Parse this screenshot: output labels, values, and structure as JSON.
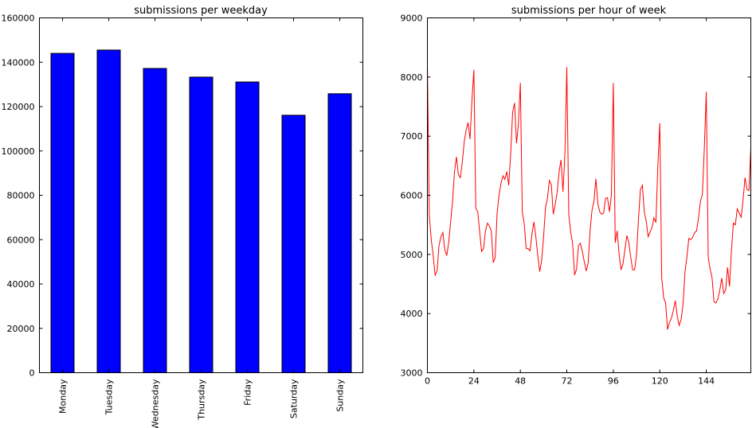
{
  "chart_data": [
    {
      "type": "bar",
      "title": "submissions per weekday",
      "categories": [
        "Monday",
        "Tuesday",
        "Wednesday",
        "Thursday",
        "Friday",
        "Saturday",
        "Sunday"
      ],
      "values": [
        144000,
        145500,
        137200,
        133300,
        131100,
        116100,
        125800
      ],
      "ylim": [
        0,
        160000
      ],
      "yticks": [
        "0",
        "20000",
        "40000",
        "60000",
        "80000",
        "100000",
        "120000",
        "140000",
        "160000"
      ],
      "bar_color": "#0000ff",
      "grid": false
    },
    {
      "type": "line",
      "title": "submissions per hour of week",
      "xlim": [
        0,
        167
      ],
      "ylim": [
        3000,
        9000
      ],
      "xticks": [
        "0",
        "24",
        "48",
        "72",
        "96",
        "120",
        "144"
      ],
      "yticks": [
        "3000",
        "4000",
        "5000",
        "6000",
        "7000",
        "8000",
        "9000"
      ],
      "line_color": "#ff0000",
      "grid": false,
      "points": [
        [
          0,
          8200
        ],
        [
          1,
          5650
        ],
        [
          2,
          5250
        ],
        [
          3,
          4980
        ],
        [
          4,
          4650
        ],
        [
          5,
          4720
        ],
        [
          6,
          5150
        ],
        [
          7,
          5300
        ],
        [
          8,
          5370
        ],
        [
          9,
          5080
        ],
        [
          10,
          4980
        ],
        [
          11,
          5200
        ],
        [
          12,
          5550
        ],
        [
          13,
          5900
        ],
        [
          14,
          6400
        ],
        [
          15,
          6650
        ],
        [
          16,
          6350
        ],
        [
          17,
          6300
        ],
        [
          18,
          6550
        ],
        [
          19,
          6900
        ],
        [
          20,
          7100
        ],
        [
          21,
          7230
        ],
        [
          22,
          6950
        ],
        [
          23,
          7600
        ],
        [
          24,
          8120
        ],
        [
          25,
          5780
        ],
        [
          26,
          5720
        ],
        [
          27,
          5380
        ],
        [
          28,
          5050
        ],
        [
          29,
          5100
        ],
        [
          30,
          5400
        ],
        [
          31,
          5530
        ],
        [
          32,
          5480
        ],
        [
          33,
          5400
        ],
        [
          34,
          4860
        ],
        [
          35,
          4950
        ],
        [
          36,
          5700
        ],
        [
          37,
          6000
        ],
        [
          38,
          6200
        ],
        [
          39,
          6330
        ],
        [
          40,
          6270
        ],
        [
          41,
          6400
        ],
        [
          42,
          6170
        ],
        [
          43,
          6700
        ],
        [
          44,
          7400
        ],
        [
          45,
          7560
        ],
        [
          46,
          6880
        ],
        [
          47,
          7200
        ],
        [
          48,
          7900
        ],
        [
          49,
          5720
        ],
        [
          50,
          5520
        ],
        [
          51,
          5100
        ],
        [
          52,
          5100
        ],
        [
          53,
          5060
        ],
        [
          54,
          5350
        ],
        [
          55,
          5550
        ],
        [
          56,
          5300
        ],
        [
          57,
          4980
        ],
        [
          58,
          4710
        ],
        [
          59,
          4900
        ],
        [
          60,
          5300
        ],
        [
          61,
          5800
        ],
        [
          62,
          5950
        ],
        [
          63,
          6250
        ],
        [
          64,
          6180
        ],
        [
          65,
          5680
        ],
        [
          66,
          5850
        ],
        [
          67,
          6050
        ],
        [
          68,
          6400
        ],
        [
          69,
          6600
        ],
        [
          70,
          6060
        ],
        [
          71,
          6700
        ],
        [
          72,
          8170
        ],
        [
          73,
          5680
        ],
        [
          74,
          5380
        ],
        [
          75,
          5180
        ],
        [
          76,
          4650
        ],
        [
          77,
          4750
        ],
        [
          78,
          5150
        ],
        [
          79,
          5190
        ],
        [
          80,
          5050
        ],
        [
          81,
          4880
        ],
        [
          82,
          4720
        ],
        [
          83,
          4850
        ],
        [
          84,
          5400
        ],
        [
          85,
          5750
        ],
        [
          86,
          5900
        ],
        [
          87,
          6280
        ],
        [
          88,
          5860
        ],
        [
          89,
          5720
        ],
        [
          90,
          5680
        ],
        [
          91,
          5700
        ],
        [
          92,
          5950
        ],
        [
          93,
          5960
        ],
        [
          94,
          5720
        ],
        [
          95,
          6000
        ],
        [
          96,
          7900
        ],
        [
          97,
          5200
        ],
        [
          98,
          5400
        ],
        [
          99,
          5000
        ],
        [
          100,
          4740
        ],
        [
          101,
          4840
        ],
        [
          102,
          5090
        ],
        [
          103,
          5320
        ],
        [
          104,
          5200
        ],
        [
          105,
          4950
        ],
        [
          106,
          4740
        ],
        [
          107,
          4740
        ],
        [
          108,
          5000
        ],
        [
          109,
          5600
        ],
        [
          110,
          6100
        ],
        [
          111,
          6170
        ],
        [
          112,
          5720
        ],
        [
          113,
          5560
        ],
        [
          114,
          5300
        ],
        [
          115,
          5380
        ],
        [
          116,
          5460
        ],
        [
          117,
          5620
        ],
        [
          118,
          5540
        ],
        [
          119,
          6500
        ],
        [
          120,
          7220
        ],
        [
          121,
          4600
        ],
        [
          122,
          4270
        ],
        [
          123,
          4180
        ],
        [
          124,
          3730
        ],
        [
          125,
          3850
        ],
        [
          126,
          3920
        ],
        [
          127,
          4050
        ],
        [
          128,
          4220
        ],
        [
          129,
          3960
        ],
        [
          130,
          3800
        ],
        [
          131,
          3900
        ],
        [
          132,
          4150
        ],
        [
          133,
          4700
        ],
        [
          134,
          4960
        ],
        [
          135,
          5270
        ],
        [
          136,
          5250
        ],
        [
          137,
          5290
        ],
        [
          138,
          5370
        ],
        [
          139,
          5400
        ],
        [
          140,
          5620
        ],
        [
          141,
          5900
        ],
        [
          142,
          6020
        ],
        [
          143,
          6800
        ],
        [
          144,
          7750
        ],
        [
          145,
          4950
        ],
        [
          146,
          4750
        ],
        [
          147,
          4600
        ],
        [
          148,
          4200
        ],
        [
          149,
          4180
        ],
        [
          150,
          4250
        ],
        [
          151,
          4400
        ],
        [
          152,
          4600
        ],
        [
          153,
          4340
        ],
        [
          154,
          4400
        ],
        [
          155,
          4780
        ],
        [
          156,
          4460
        ],
        [
          157,
          5070
        ],
        [
          158,
          5530
        ],
        [
          159,
          5500
        ],
        [
          160,
          5770
        ],
        [
          161,
          5700
        ],
        [
          162,
          5630
        ],
        [
          163,
          5920
        ],
        [
          164,
          6300
        ],
        [
          165,
          6100
        ],
        [
          166,
          6080
        ],
        [
          167,
          6800
        ]
      ]
    }
  ]
}
